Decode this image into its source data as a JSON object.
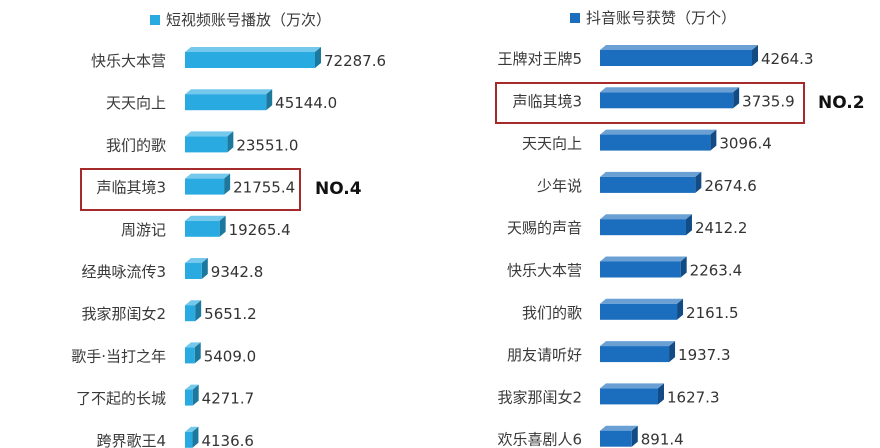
{
  "chart_data": [
    {
      "type": "bar",
      "orientation": "horizontal",
      "title": "",
      "legend": "短视频账号播放（万次）",
      "legend_placement": "top",
      "bar_color": "#29ABE2",
      "categories": [
        "快乐大本营",
        "天天向上",
        "我们的歌",
        "声临其境3",
        "周游记",
        "经典咏流传3",
        "我家那闺女2",
        "歌手·当打之年",
        "了不起的长城",
        "跨界歌王4"
      ],
      "values": [
        72287.6,
        45144.0,
        23551.0,
        21755.4,
        19265.4,
        9342.8,
        5651.2,
        5409.0,
        4271.7,
        4136.6
      ],
      "value_labels": [
        "72287.6",
        "45144.0",
        "23551.0",
        "21755.4",
        "19265.4",
        "9342.8",
        "5651.2",
        "5409.0",
        "4271.7",
        "4136.6"
      ],
      "highlight": {
        "category": "声临其境3",
        "annotation": "NO.4",
        "box_color": "#A52A2A"
      },
      "grid": false,
      "xlim": [
        0,
        72287.6
      ]
    },
    {
      "type": "bar",
      "orientation": "horizontal",
      "title": "",
      "legend": "抖音账号获赞（万个）",
      "legend_placement": "top",
      "bar_color": "#1B6DBE",
      "categories": [
        "王牌对王牌5",
        "声临其境3",
        "天天向上",
        "少年说",
        "天赐的声音",
        "快乐大本营",
        "我们的歌",
        "朋友请听好",
        "我家那闺女2",
        "欢乐喜剧人6"
      ],
      "values": [
        4264.3,
        3735.9,
        3096.4,
        2674.6,
        2412.2,
        2263.4,
        2161.5,
        1937.3,
        1627.3,
        891.4
      ],
      "value_labels": [
        "4264.3",
        "3735.9",
        "3096.4",
        "2674.6",
        "2412.2",
        "2263.4",
        "2161.5",
        "1937.3",
        "1627.3",
        "891.4"
      ],
      "highlight": {
        "category": "声临其境3",
        "annotation": "NO.2",
        "box_color": "#A52A2A"
      },
      "grid": false,
      "xlim": [
        0,
        4264.3
      ]
    }
  ]
}
